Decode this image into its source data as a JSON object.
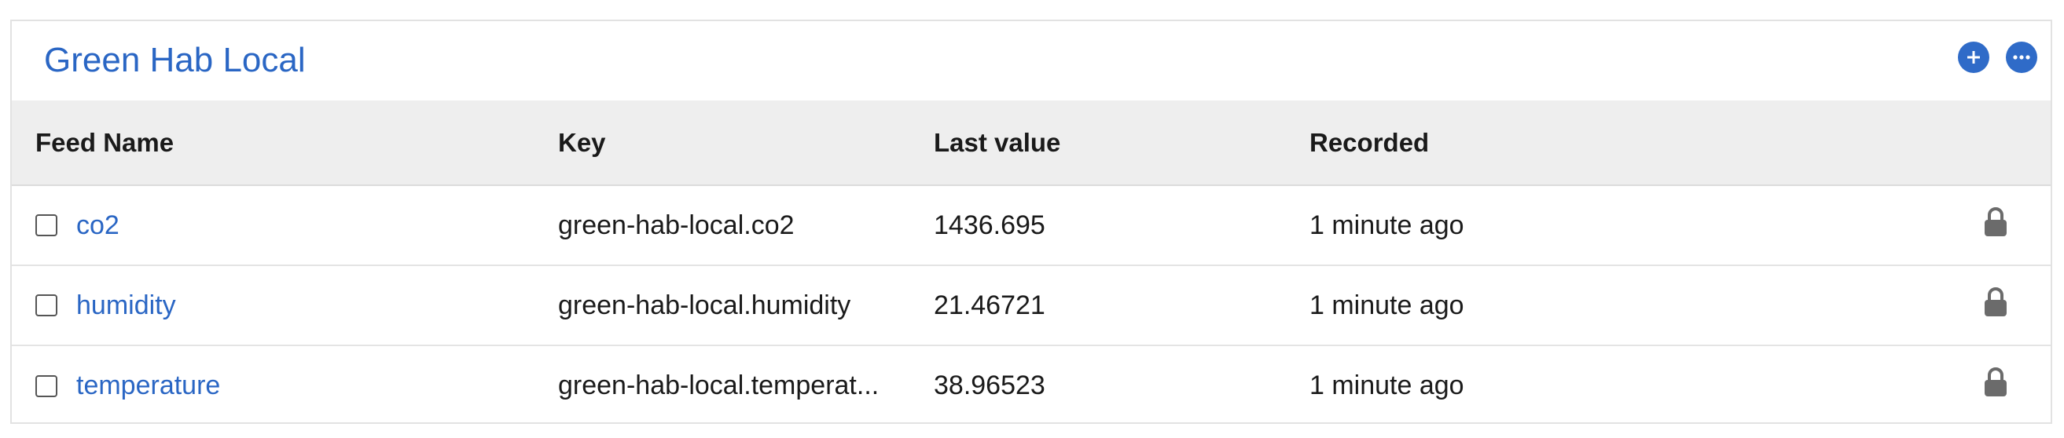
{
  "group": {
    "title": "Green Hab Local"
  },
  "actions": {
    "add_icon": "plus-circle-icon",
    "more_icon": "ellipsis-circle-icon"
  },
  "table": {
    "headers": {
      "feed_name": "Feed Name",
      "key": "Key",
      "last_value": "Last value",
      "recorded": "Recorded"
    },
    "rows": [
      {
        "name": "co2",
        "key": "green-hab-local.co2",
        "last_value": "1436.695",
        "recorded": "1 minute ago",
        "icon": "lock-icon"
      },
      {
        "name": "humidity",
        "key": "green-hab-local.humidity",
        "last_value": "21.46721",
        "recorded": "1 minute ago",
        "icon": "lock-icon"
      },
      {
        "name": "temperature",
        "key": "green-hab-local.temperat...",
        "last_value": "38.96523",
        "recorded": "1 minute ago",
        "icon": "lock-icon"
      }
    ]
  },
  "colors": {
    "accent": "#2a66c4",
    "button": "#2f6bc8",
    "header_bg": "#eeeeee",
    "lock": "#6b6b6b"
  }
}
